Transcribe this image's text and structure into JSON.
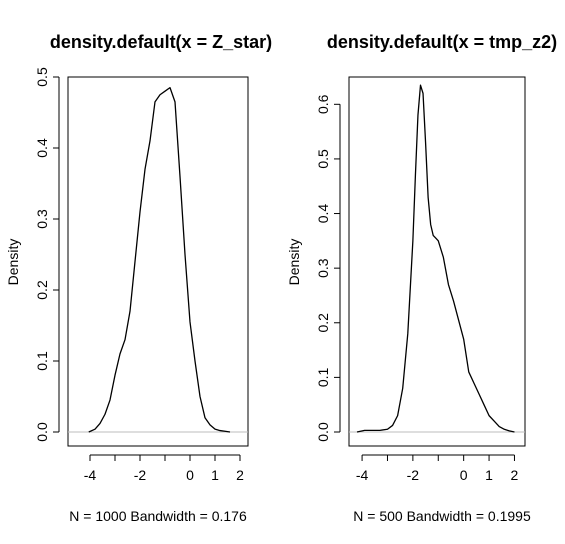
{
  "chart_data": [
    {
      "type": "line",
      "title": "density.default(x = Z_star)",
      "ylabel": "Density",
      "sublabel": "N = 1000   Bandwidth = 0.176",
      "xlim": [
        -4.0,
        2.0
      ],
      "ylim": [
        0,
        0.5
      ],
      "xticks": [
        -4,
        -2,
        0,
        1,
        2
      ],
      "xminor": [
        -3,
        -1
      ],
      "yticks": [
        0.0,
        0.1,
        0.2,
        0.3,
        0.4,
        0.5
      ],
      "ytick_labels": [
        "0.0",
        "0.1",
        "0.2",
        "0.3",
        "0.4",
        "0.5"
      ],
      "baseline": true,
      "series": [
        {
          "x": [
            -4.05,
            -3.8,
            -3.6,
            -3.4,
            -3.2,
            -3.0,
            -2.8,
            -2.6,
            -2.4,
            -2.2,
            -2.0,
            -1.8,
            -1.6,
            -1.4,
            -1.2,
            -1.0,
            -0.8,
            -0.6,
            -0.4,
            -0.2,
            0.0,
            0.2,
            0.4,
            0.6,
            0.8,
            1.0,
            1.2,
            1.4,
            1.6
          ],
          "y": [
            0.0,
            0.004,
            0.012,
            0.025,
            0.045,
            0.08,
            0.11,
            0.13,
            0.17,
            0.24,
            0.31,
            0.37,
            0.41,
            0.465,
            0.475,
            0.48,
            0.485,
            0.465,
            0.36,
            0.25,
            0.155,
            0.1,
            0.05,
            0.02,
            0.01,
            0.004,
            0.002,
            0.001,
            0.0
          ]
        }
      ]
    },
    {
      "type": "line",
      "title": "density.default(x = tmp_z2)",
      "ylabel": "Density",
      "sublabel": "N = 500   Bandwidth = 0.1995",
      "xlim": [
        -4.2,
        2.1
      ],
      "ylim": [
        0,
        0.65
      ],
      "xticks": [
        -4,
        -2,
        0,
        1,
        2
      ],
      "xminor": [
        -3,
        -1
      ],
      "yticks": [
        0.0,
        0.1,
        0.2,
        0.3,
        0.4,
        0.5,
        0.6
      ],
      "ytick_labels": [
        "0.0",
        "0.1",
        "0.2",
        "0.3",
        "0.4",
        "0.5",
        "0.6"
      ],
      "baseline": true,
      "series": [
        {
          "x": [
            -4.2,
            -3.9,
            -3.6,
            -3.3,
            -3.0,
            -2.8,
            -2.6,
            -2.4,
            -2.2,
            -2.0,
            -1.9,
            -1.8,
            -1.7,
            -1.6,
            -1.5,
            -1.4,
            -1.3,
            -1.2,
            -1.1,
            -1.0,
            -0.8,
            -0.6,
            -0.4,
            -0.2,
            0.0,
            0.2,
            0.4,
            0.6,
            0.8,
            1.0,
            1.2,
            1.4,
            1.6,
            1.8,
            2.0
          ],
          "y": [
            0.0,
            0.003,
            0.003,
            0.003,
            0.005,
            0.012,
            0.03,
            0.08,
            0.18,
            0.35,
            0.47,
            0.58,
            0.635,
            0.62,
            0.53,
            0.43,
            0.38,
            0.36,
            0.355,
            0.35,
            0.32,
            0.27,
            0.24,
            0.205,
            0.17,
            0.11,
            0.09,
            0.07,
            0.05,
            0.03,
            0.02,
            0.01,
            0.005,
            0.002,
            0.0
          ]
        }
      ]
    }
  ]
}
